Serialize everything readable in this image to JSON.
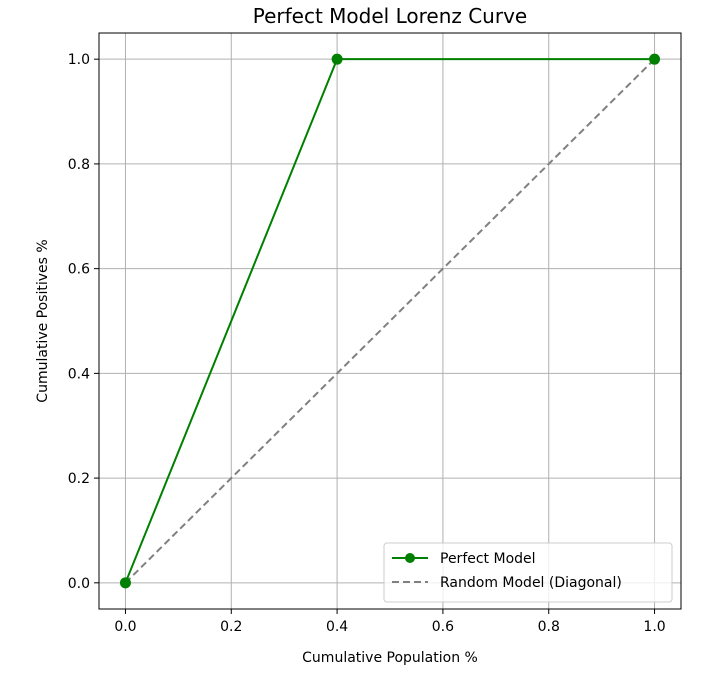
{
  "chart_data": {
    "type": "line",
    "title": "Perfect Model Lorenz Curve",
    "xlabel": "Cumulative Population %",
    "ylabel": "Cumulative Positives %",
    "xlim": [
      -0.05,
      1.05
    ],
    "ylim": [
      -0.05,
      1.05
    ],
    "xticks": [
      0.0,
      0.2,
      0.4,
      0.6,
      0.8,
      1.0
    ],
    "yticks": [
      0.0,
      0.2,
      0.4,
      0.6,
      0.8,
      1.0
    ],
    "xtick_labels": [
      "0.0",
      "0.2",
      "0.4",
      "0.6",
      "0.8",
      "1.0"
    ],
    "ytick_labels": [
      "0.0",
      "0.2",
      "0.4",
      "0.6",
      "0.8",
      "1.0"
    ],
    "grid": true,
    "legend_position": "lower-right",
    "series": [
      {
        "name": "Perfect Model",
        "x": [
          0.0,
          0.4,
          1.0
        ],
        "y": [
          0.0,
          1.0,
          1.0
        ],
        "color": "#008000",
        "line_style": "solid",
        "marker": "circle"
      },
      {
        "name": "Random Model (Diagonal)",
        "x": [
          0.0,
          1.0
        ],
        "y": [
          0.0,
          1.0
        ],
        "color": "#808080",
        "line_style": "dashed",
        "marker": "none"
      }
    ]
  }
}
